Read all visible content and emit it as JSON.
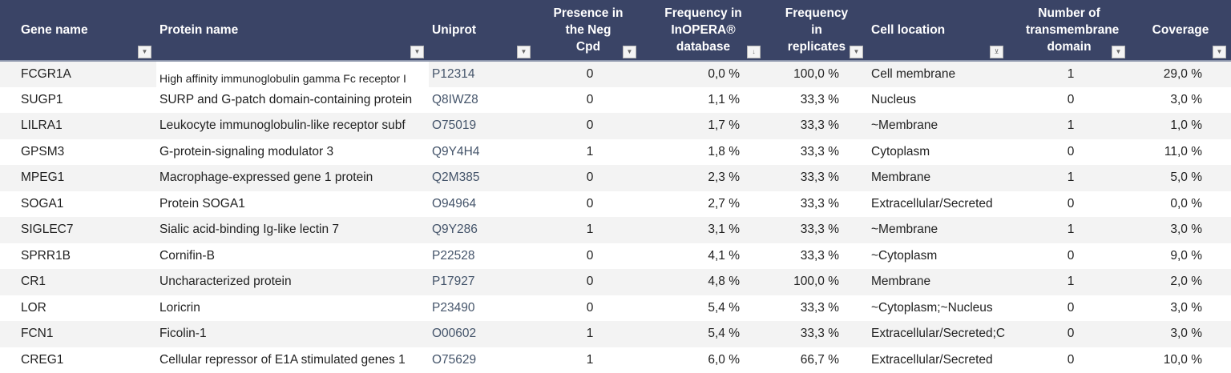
{
  "columns": [
    {
      "label": "Gene name",
      "filter": "dropdown"
    },
    {
      "label": "Protein name",
      "filter": "dropdown"
    },
    {
      "label": "Uniprot",
      "filter": "dropdown"
    },
    {
      "label": "Presence in the Neg Cpd",
      "filter": "dropdown"
    },
    {
      "label": "Frequency in InOPERA® database",
      "filter": "sorted-ascending"
    },
    {
      "label": "Frequency in replicates",
      "filter": "dropdown"
    },
    {
      "label": "Cell location",
      "filter": "filter-active"
    },
    {
      "label": "Number of transmembrane domain",
      "filter": "dropdown"
    },
    {
      "label": "Coverage",
      "filter": "dropdown"
    }
  ],
  "colors": {
    "header_bg": "#3a4466",
    "uniprot_text": "#44546a",
    "stripe": "#f3f3f3"
  },
  "rows": [
    [
      "FCGR1A",
      "High affinity immunoglobulin gamma Fc receptor I",
      "P12314",
      "0",
      "0,0 %",
      "100,0 %",
      "Cell membrane",
      "1",
      "29,0 %"
    ],
    [
      "SUGP1",
      "SURP and G-patch domain-containing protein",
      "Q8IWZ8",
      "0",
      "1,1 %",
      "33,3 %",
      "Nucleus",
      "0",
      "3,0 %"
    ],
    [
      "LILRA1",
      "Leukocyte immunoglobulin-like receptor subf",
      "O75019",
      "0",
      "1,7 %",
      "33,3 %",
      "~Membrane",
      "1",
      "1,0 %"
    ],
    [
      "GPSM3",
      "G-protein-signaling modulator 3",
      "Q9Y4H4",
      "1",
      "1,8 %",
      "33,3 %",
      "Cytoplasm",
      "0",
      "11,0 %"
    ],
    [
      "MPEG1",
      "Macrophage-expressed gene 1 protein",
      "Q2M385",
      "0",
      "2,3 %",
      "33,3 %",
      "Membrane",
      "1",
      "5,0 %"
    ],
    [
      "SOGA1",
      "Protein SOGA1",
      "O94964",
      "0",
      "2,7 %",
      "33,3 %",
      "Extracellular/Secreted",
      "0",
      "0,0 %"
    ],
    [
      "SIGLEC7",
      "Sialic acid-binding Ig-like lectin 7",
      "Q9Y286",
      "1",
      "3,1 %",
      "33,3 %",
      "~Membrane",
      "1",
      "3,0 %"
    ],
    [
      "SPRR1B",
      "Cornifin-B",
      "P22528",
      "0",
      "4,1 %",
      "33,3 %",
      "~Cytoplasm",
      "0",
      "9,0 %"
    ],
    [
      "CR1",
      "Uncharacterized protein",
      "P17927",
      "0",
      "4,8 %",
      "100,0 %",
      "Membrane",
      "1",
      "2,0 %"
    ],
    [
      "LOR",
      "Loricrin",
      "P23490",
      "0",
      "5,4 %",
      "33,3 %",
      "~Cytoplasm;~Nucleus",
      "0",
      "3,0 %"
    ],
    [
      "FCN1",
      "Ficolin-1",
      "O00602",
      "1",
      "5,4 %",
      "33,3 %",
      "Extracellular/Secreted;C",
      "0",
      "3,0 %"
    ],
    [
      "CREG1",
      "Cellular repressor of E1A stimulated genes 1",
      "O75629",
      "1",
      "6,0 %",
      "66,7 %",
      "Extracellular/Secreted",
      "0",
      "10,0 %"
    ]
  ]
}
